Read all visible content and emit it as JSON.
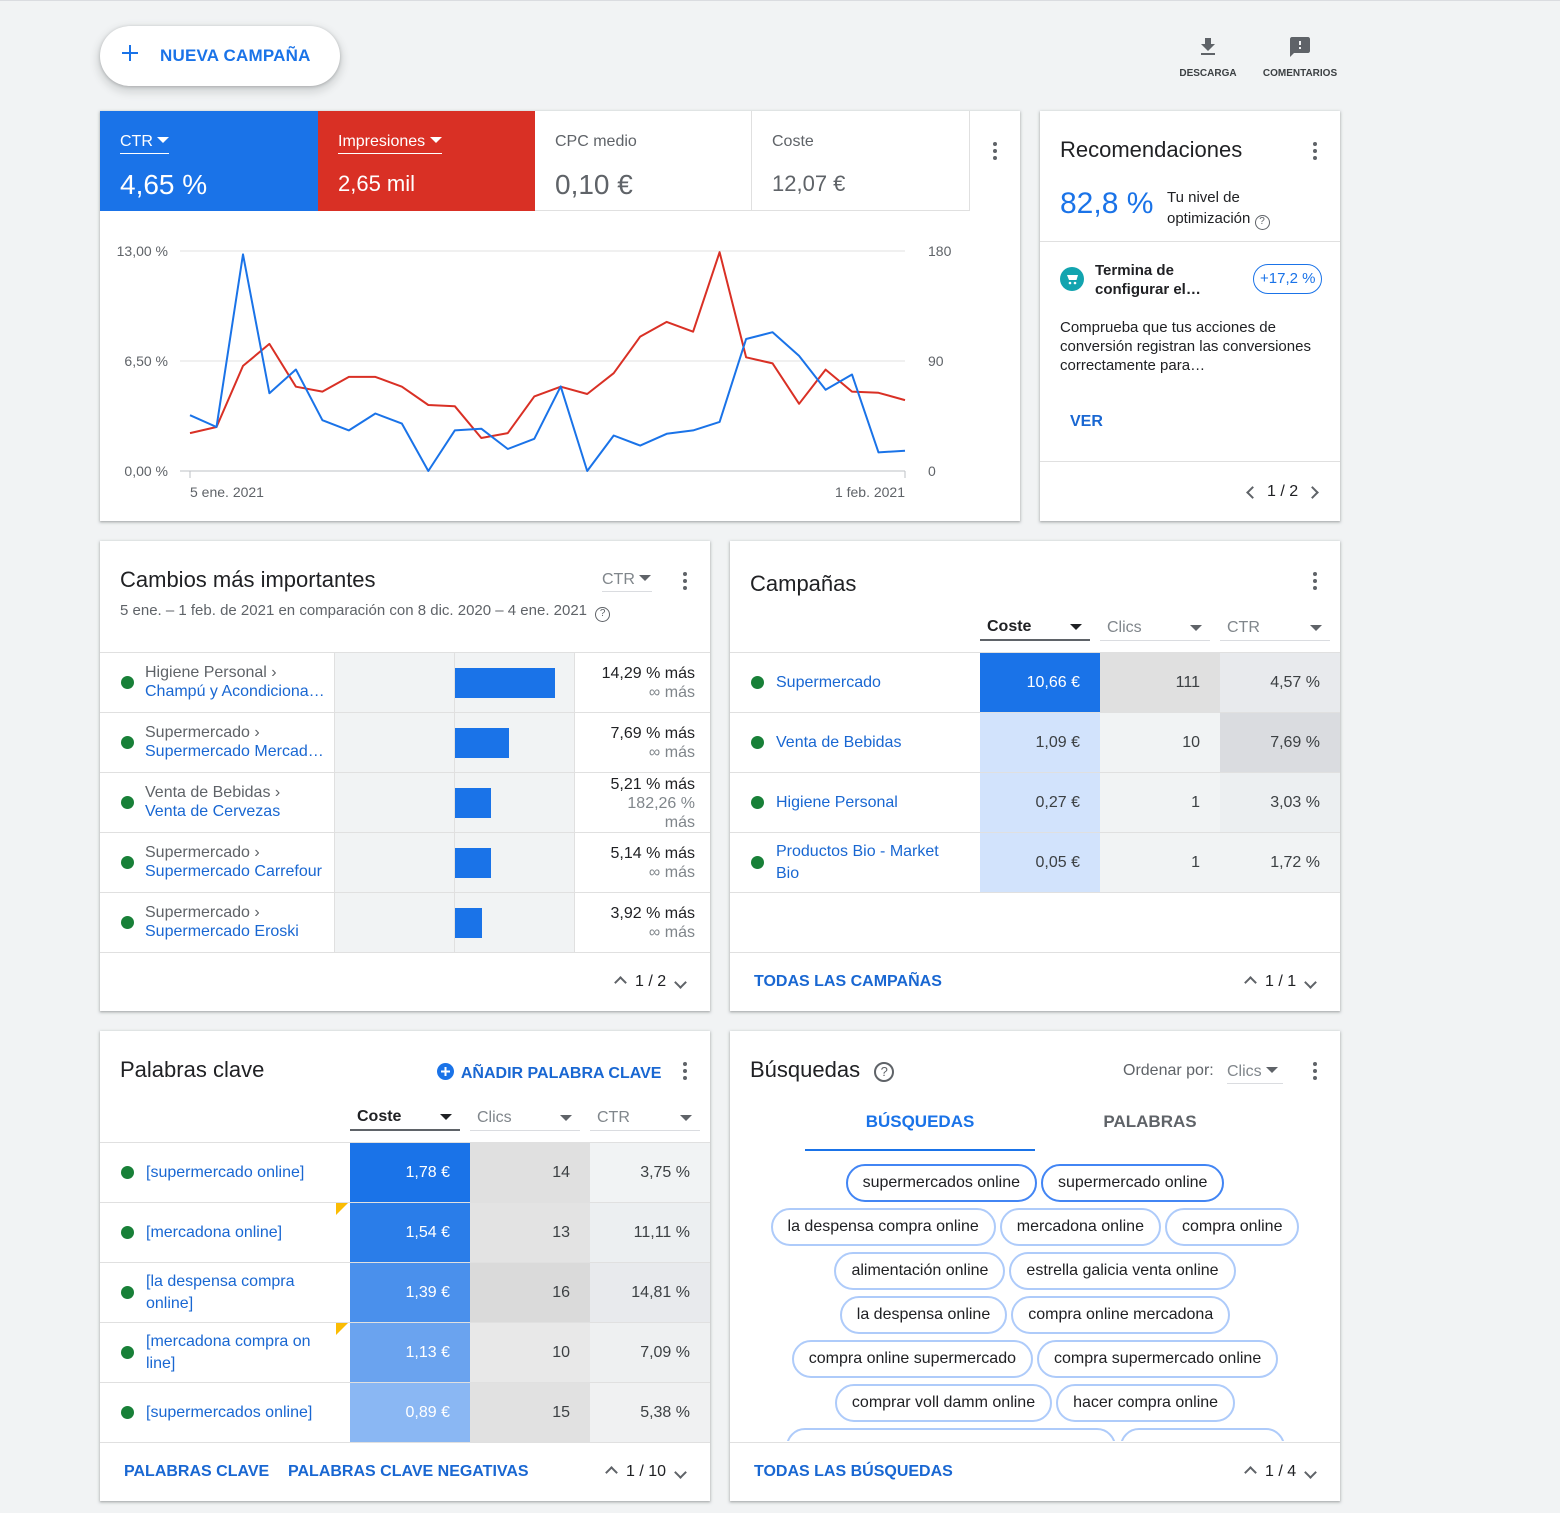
{
  "toolbar": {
    "new_campaign_label": "NUEVA CAMPAÑA",
    "download_label": "DESCARGA",
    "comments_label": "COMENTARIOS"
  },
  "metrics": [
    {
      "label": "CTR",
      "value": "4,65 %",
      "color": "#1a73e8"
    },
    {
      "label": "Impresiones",
      "value": "2,65 mil",
      "color": "#d93025"
    },
    {
      "label": "CPC medio",
      "value": "0,10 €"
    },
    {
      "label": "Coste",
      "value": "12,07 €"
    }
  ],
  "chart_data": {
    "type": "line",
    "x_labels": [
      "5 ene. 2021",
      "1 feb. 2021"
    ],
    "y_left_ticks": [
      "13,00 %",
      "6,50 %",
      "0,00 %"
    ],
    "y_right_ticks": [
      "180",
      "90",
      "0"
    ],
    "ylim_left": [
      0,
      13
    ],
    "ylim_right": [
      0,
      180
    ],
    "grid": true,
    "series": [
      {
        "name": "CTR",
        "axis": "left",
        "color": "#1a73e8",
        "values": [
          3.3,
          2.6,
          12.8,
          4.6,
          6.0,
          3.0,
          2.4,
          3.4,
          2.8,
          0.0,
          2.4,
          2.5,
          1.3,
          1.9,
          5.0,
          0.0,
          2.1,
          1.5,
          2.2,
          2.4,
          2.9,
          7.8,
          8.2,
          6.8,
          4.8,
          5.7,
          1.1,
          1.2
        ]
      },
      {
        "name": "Impresiones",
        "axis": "right",
        "color": "#d93025",
        "values": [
          31,
          36,
          86,
          104,
          69,
          65,
          77,
          77,
          69,
          54,
          53,
          27,
          31,
          61,
          69,
          63,
          80,
          110,
          122,
          114,
          179,
          93,
          88,
          55,
          83,
          65,
          64,
          58
        ]
      }
    ]
  },
  "recommendations": {
    "title": "Recomendaciones",
    "score": "82,8 %",
    "score_caption": "Tu nivel de optimización",
    "item_title": "Termina de configurar el…",
    "item_badge": "+17,2 %",
    "item_body": "Comprueba que tus acciones de conversión registran las conversiones correctamente para…",
    "action": "VER",
    "pager": "1 / 2"
  },
  "changes": {
    "title": "Cambios más importantes",
    "metric_select": "CTR",
    "subtitle": "5 ene. – 1 feb. de 2021 en comparación con 8 dic. 2020 – 4 ene. 2021",
    "rows": [
      {
        "parent": "Higiene Personal ›",
        "child": "Champú y Acondiciona…",
        "change": 14.29,
        "primary": "14,29 % más",
        "secondary": "∞ más"
      },
      {
        "parent": "Supermercado ›",
        "child": "Supermercado Mercad…",
        "change": 7.69,
        "primary": "7,69 % más",
        "secondary": "∞ más"
      },
      {
        "parent": "Venta de Bebidas ›",
        "child": "Venta de Cervezas",
        "change": 5.21,
        "primary": "5,21 % más",
        "secondary": "182,26 % más"
      },
      {
        "parent": "Supermercado ›",
        "child": "Supermercado Carrefour",
        "change": 5.14,
        "primary": "5,14 % más",
        "secondary": "∞ más"
      },
      {
        "parent": "Supermercado ›",
        "child": "Supermercado Eroski",
        "change": 3.92,
        "primary": "3,92 % más",
        "secondary": "∞ más"
      }
    ],
    "pager": "1 / 2"
  },
  "campaigns": {
    "title": "Campañas",
    "columns": [
      "Coste",
      "Clics",
      "CTR"
    ],
    "rows": [
      {
        "name": "Supermercado",
        "cost": "10,66 €",
        "clicks": "111",
        "ctr": "4,57 %"
      },
      {
        "name": "Venta de Bebidas",
        "cost": "1,09 €",
        "clicks": "10",
        "ctr": "7,69 %"
      },
      {
        "name": "Higiene Personal",
        "cost": "0,27 €",
        "clicks": "1",
        "ctr": "3,03 %"
      },
      {
        "name": "Productos Bio - Market Bio",
        "cost": "0,05 €",
        "clicks": "1",
        "ctr": "1,72 %"
      }
    ],
    "all_link": "TODAS LAS CAMPAÑAS",
    "pager": "1 / 1"
  },
  "keywords": {
    "title": "Palabras clave",
    "add_label": "AÑADIR PALABRA CLAVE",
    "columns": [
      "Coste",
      "Clics",
      "CTR"
    ],
    "rows": [
      {
        "keyword": "[supermercado online]",
        "cost": "1,78 €",
        "clicks": "14",
        "ctr": "3,75 %"
      },
      {
        "keyword": "[mercadona online]",
        "cost": "1,54 €",
        "clicks": "13",
        "ctr": "11,11 %"
      },
      {
        "keyword": "[la despensa compra online]",
        "cost": "1,39 €",
        "clicks": "16",
        "ctr": "14,81 %"
      },
      {
        "keyword": "[mercadona compra on line]",
        "cost": "1,13 €",
        "clicks": "10",
        "ctr": "7,09 %"
      },
      {
        "keyword": "[supermercados online]",
        "cost": "0,89 €",
        "clicks": "15",
        "ctr": "5,38 %"
      }
    ],
    "link_keywords": "PALABRAS CLAVE",
    "link_negative": "PALABRAS CLAVE NEGATIVAS",
    "pager": "1 / 10"
  },
  "searches": {
    "title": "Búsquedas",
    "sort_label": "Ordenar por:",
    "sort_value": "Clics",
    "tabs": [
      "BÚSQUEDAS",
      "PALABRAS"
    ],
    "chips": [
      [
        "supermercados online",
        "supermercado online"
      ],
      [
        "la despensa compra online",
        "mercadona online",
        "compra online"
      ],
      [
        "alimentación online",
        "estrella galicia venta online"
      ],
      [
        "la despensa online",
        "compra online mercadona"
      ],
      [
        "compra online supermercado",
        "compra supermercado online"
      ],
      [
        "comprar voll damm online",
        "hacer compra online"
      ]
    ],
    "all_link": "TODAS LAS BÚSQUEDAS",
    "pager": "1 / 4"
  }
}
